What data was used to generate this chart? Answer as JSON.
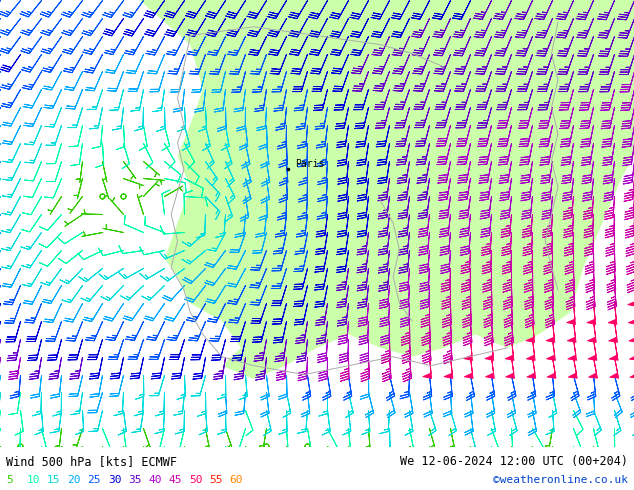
{
  "title_left": "Wind 500 hPa [kts] ECMWF",
  "title_right": "We 12-06-2024 12:00 UTC (00+204)",
  "copyright": "©weatheronline.co.uk",
  "legend_values": [
    5,
    10,
    15,
    20,
    25,
    30,
    35,
    40,
    45,
    50,
    55,
    60
  ],
  "legend_colors": [
    "#33cc00",
    "#00aaff",
    "#0044ee",
    "#3300cc",
    "#aa00ff",
    "#cc00cc",
    "#ff00aa",
    "#ff2200",
    "#ff6600",
    "#ffaa00",
    "#ccdd00",
    "#88ff00"
  ],
  "bg_color": "#ffffff",
  "land_color": "#ccffaa",
  "sea_color": "#e8e8e8",
  "fig_width": 6.34,
  "fig_height": 4.9,
  "dpi": 100
}
